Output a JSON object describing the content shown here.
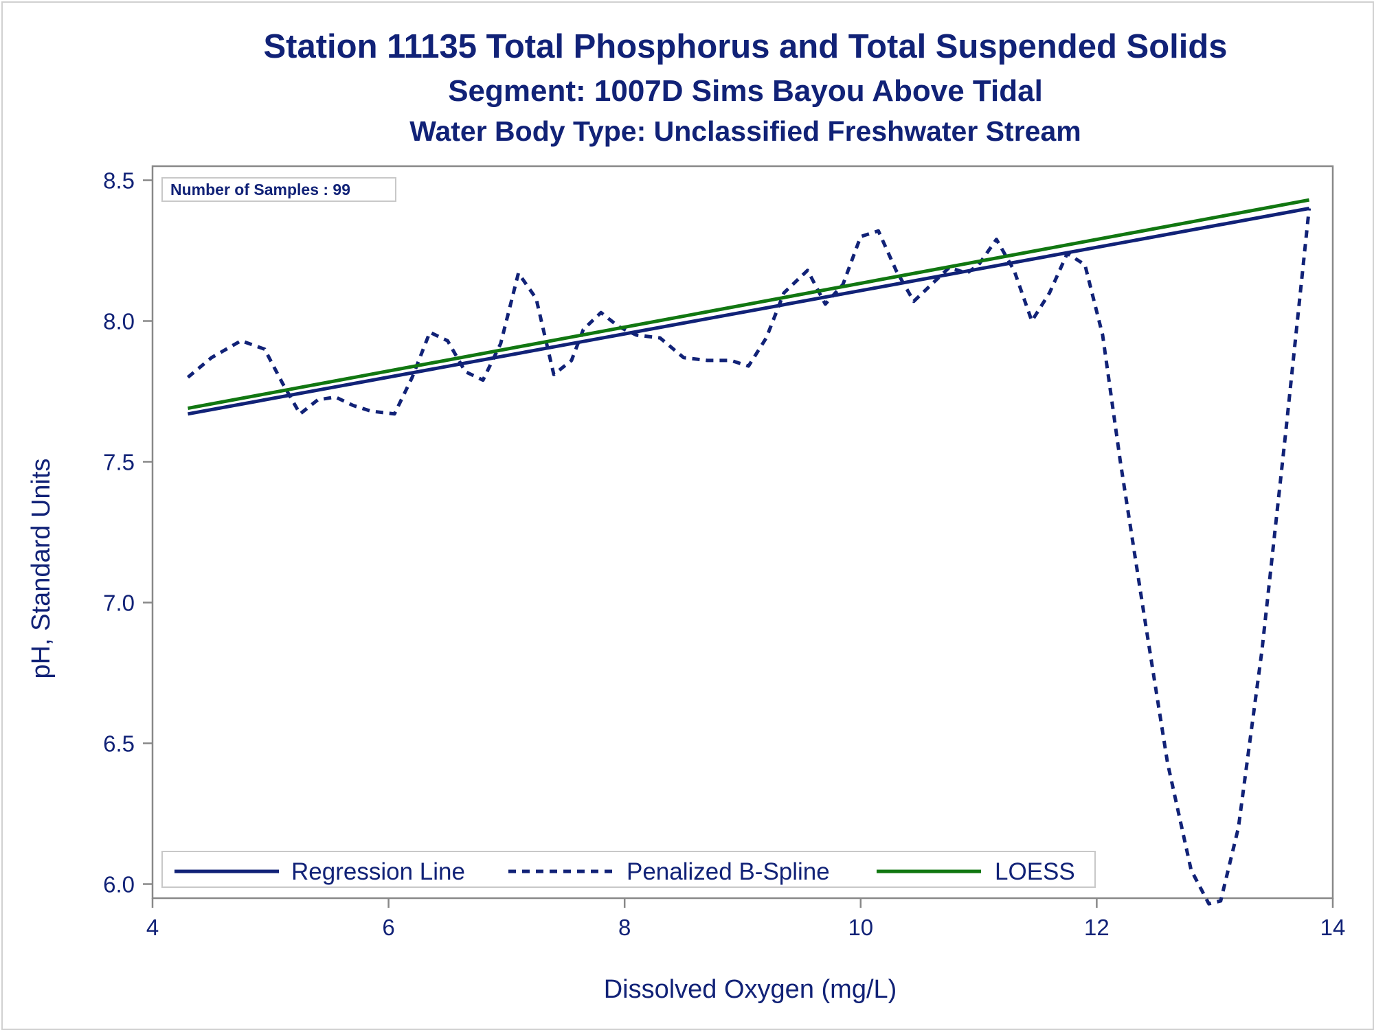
{
  "chart_data": {
    "type": "line",
    "title": "Station 11135  Total Phosphorus and Total Suspended Solids",
    "subtitle": "Segment: 1007D  Sims Bayou Above Tidal",
    "subtitle2": "Water Body Type: Unclassified Freshwater Stream",
    "xlabel": "Dissolved Oxygen (mg/L)",
    "ylabel": "pH, Standard Units",
    "xlim": [
      4,
      14
    ],
    "ylim": [
      5.95,
      8.55
    ],
    "xticks": [
      "4",
      "6",
      "8",
      "10",
      "12",
      "14"
    ],
    "yticks": [
      "6.0",
      "6.5",
      "7.0",
      "7.5",
      "8.0",
      "8.5"
    ],
    "inset_label": "Number of Samples : 99",
    "legend_position": "bottom-left inside",
    "series": [
      {
        "name": "Regression Line",
        "color": "#112277",
        "style": "solid",
        "x": [
          4.3,
          13.8
        ],
        "y": [
          7.67,
          8.4
        ]
      },
      {
        "name": "Penalized B-Spline",
        "color": "#112277",
        "style": "dashed",
        "x": [
          4.3,
          4.5,
          4.75,
          4.95,
          5.1,
          5.25,
          5.4,
          5.55,
          5.7,
          5.85,
          6.05,
          6.2,
          6.35,
          6.5,
          6.65,
          6.8,
          6.95,
          7.1,
          7.25,
          7.4,
          7.55,
          7.65,
          7.8,
          7.95,
          8.1,
          8.3,
          8.5,
          8.7,
          8.9,
          9.05,
          9.2,
          9.35,
          9.55,
          9.7,
          9.85,
          10.0,
          10.15,
          10.3,
          10.45,
          10.6,
          10.75,
          10.9,
          11.0,
          11.15,
          11.3,
          11.45,
          11.6,
          11.75,
          11.9,
          12.05,
          12.2,
          12.4,
          12.6,
          12.8,
          12.95,
          13.05,
          13.2,
          13.4,
          13.6,
          13.8
        ],
        "y": [
          7.8,
          7.87,
          7.93,
          7.9,
          7.78,
          7.67,
          7.72,
          7.73,
          7.7,
          7.68,
          7.67,
          7.8,
          7.96,
          7.93,
          7.82,
          7.79,
          7.92,
          8.17,
          8.08,
          7.81,
          7.86,
          7.97,
          8.03,
          7.98,
          7.95,
          7.94,
          7.87,
          7.86,
          7.86,
          7.84,
          7.94,
          8.1,
          8.18,
          8.06,
          8.13,
          8.3,
          8.32,
          8.18,
          8.07,
          8.13,
          8.19,
          8.17,
          8.2,
          8.29,
          8.18,
          8.0,
          8.1,
          8.24,
          8.2,
          7.95,
          7.5,
          6.96,
          6.43,
          6.05,
          5.93,
          5.94,
          6.2,
          6.83,
          7.6,
          8.4
        ]
      },
      {
        "name": "LOESS",
        "color": "#117711",
        "style": "solid",
        "x": [
          4.3,
          13.8
        ],
        "y": [
          7.69,
          8.43
        ]
      }
    ]
  }
}
